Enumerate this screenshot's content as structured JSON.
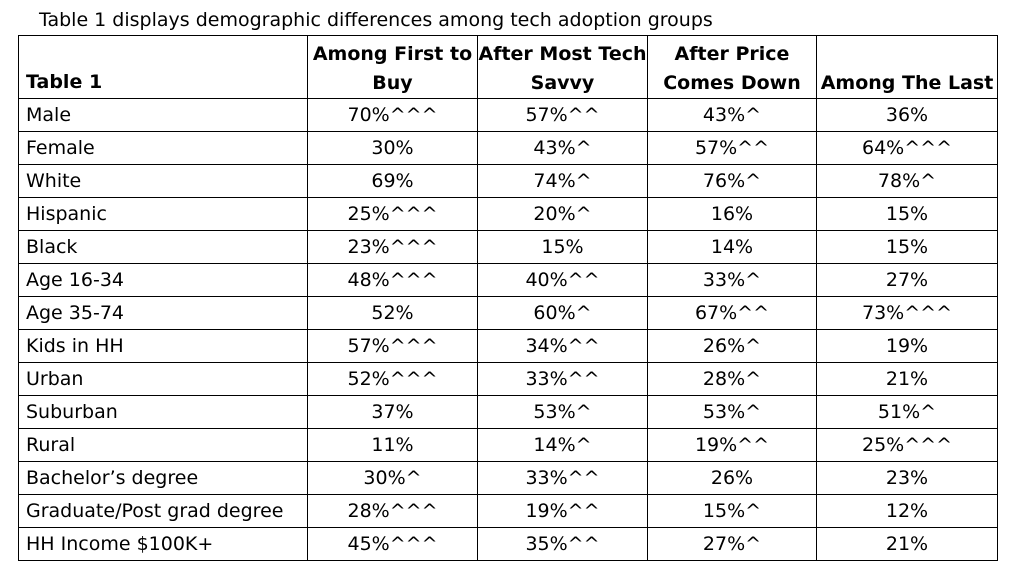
{
  "caption": "Table 1 displays demographic differences among tech adoption groups",
  "table": {
    "corner": "Table 1",
    "columns": [
      "Among First to Buy",
      "After Most Tech Savvy",
      "After Price Comes Down",
      "Among The Last"
    ],
    "rows": [
      {
        "label": "Male",
        "values": [
          "70%^^^",
          "57%^^",
          "43%^",
          "36%"
        ]
      },
      {
        "label": "Female",
        "values": [
          "30%",
          "43%^",
          "57%^^",
          "64%^^^"
        ]
      },
      {
        "label": "White",
        "values": [
          "69%",
          "74%^",
          "76%^",
          "78%^"
        ]
      },
      {
        "label": "Hispanic",
        "values": [
          "25%^^^",
          "20%^",
          "16%",
          "15%"
        ]
      },
      {
        "label": "Black",
        "values": [
          "23%^^^",
          "15%",
          "14%",
          "15%"
        ]
      },
      {
        "label": "Age 16-34",
        "values": [
          "48%^^^",
          "40%^^",
          "33%^",
          "27%"
        ]
      },
      {
        "label": "Age 35-74",
        "values": [
          "52%",
          "60%^",
          "67%^^",
          "73%^^^"
        ]
      },
      {
        "label": "Kids in HH",
        "values": [
          "57%^^^",
          "34%^^",
          "26%^",
          "19%"
        ]
      },
      {
        "label": "Urban",
        "values": [
          "52%^^^",
          "33%^^",
          "28%^",
          "21%"
        ]
      },
      {
        "label": "Suburban",
        "values": [
          "37%",
          "53%^",
          "53%^",
          "51%^"
        ]
      },
      {
        "label": "Rural",
        "values": [
          "11%",
          "14%^",
          "19%^^",
          "25%^^^"
        ]
      },
      {
        "label": "Bachelor’s degree",
        "values": [
          "30%^",
          "33%^^",
          "26%",
          "23%"
        ]
      },
      {
        "label": "Graduate/Post grad degree",
        "values": [
          "28%^^^",
          "19%^^",
          "15%^",
          "12%"
        ]
      },
      {
        "label": "HH Income $100K+",
        "values": [
          "45%^^^",
          "35%^^",
          "27%^",
          "21%"
        ]
      }
    ]
  }
}
